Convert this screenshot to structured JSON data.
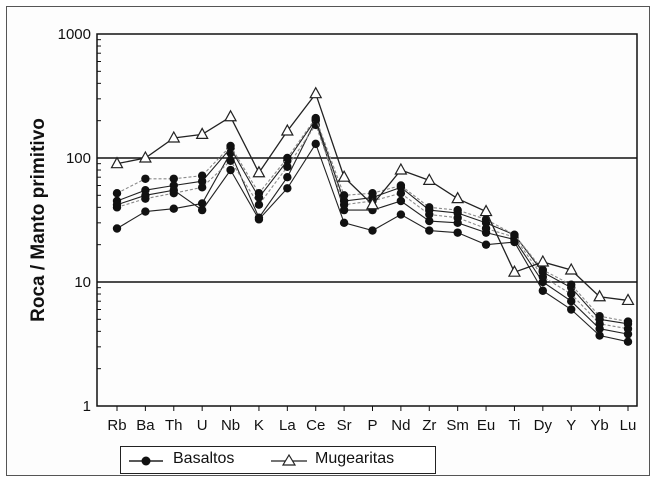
{
  "chart_data": {
    "type": "line",
    "title": "",
    "xlabel": "",
    "ylabel": "Roca / Manto primitivo",
    "yscale": "log",
    "ylim": [
      1,
      1000
    ],
    "yticks": [
      1,
      10,
      100,
      1000
    ],
    "ytick_labels": [
      "1",
      "10",
      "100",
      "1000"
    ],
    "gridlines_y": [
      10,
      100
    ],
    "categories": [
      "Rb",
      "Ba",
      "Th",
      "U",
      "Nb",
      "K",
      "La",
      "Ce",
      "Sr",
      "P",
      "Nd",
      "Zr",
      "Sm",
      "Eu",
      "Ti",
      "Dy",
      "Y",
      "Yb",
      "Lu"
    ],
    "legend_position": "bottom",
    "legend": [
      {
        "label": "Basaltos",
        "marker": "filled-circle"
      },
      {
        "label": "Mugearitas",
        "marker": "open-triangle"
      }
    ],
    "series": [
      {
        "name": "Basaltos",
        "marker": "circle",
        "values": [
          27,
          37,
          39,
          43,
          110,
          33,
          70,
          200,
          38,
          38,
          45,
          31,
          30,
          25,
          22,
          10,
          7,
          4.2,
          3.8
        ]
      },
      {
        "name": "Basaltos",
        "marker": "circle",
        "values": [
          40,
          47,
          52,
          58,
          95,
          42,
          85,
          185,
          42,
          45,
          52,
          35,
          33,
          27,
          23,
          11,
          8,
          4.6,
          4.2
        ]
      },
      {
        "name": "Basaltos",
        "marker": "circle",
        "values": [
          45,
          55,
          60,
          65,
          120,
          48,
          95,
          205,
          45,
          48,
          58,
          38,
          36,
          30,
          24,
          12,
          9,
          5.0,
          4.6
        ]
      },
      {
        "name": "Basaltos",
        "marker": "circle",
        "values": [
          52,
          68,
          68,
          72,
          125,
          52,
          100,
          210,
          50,
          52,
          60,
          40,
          38,
          32,
          24,
          12.5,
          9.5,
          5.3,
          4.8
        ]
      },
      {
        "name": "Basaltos",
        "marker": "circle",
        "values": [
          42,
          50,
          55,
          38,
          80,
          32,
          57,
          130,
          30,
          26,
          35,
          26,
          25,
          20,
          21,
          8.5,
          6,
          3.7,
          3.3
        ]
      },
      {
        "name": "Mugearitas",
        "marker": "triangle",
        "values": [
          90,
          100,
          145,
          155,
          215,
          76,
          165,
          330,
          70,
          42,
          80,
          66,
          47,
          37,
          12,
          14.5,
          12.5,
          7.6,
          7.1
        ]
      }
    ]
  },
  "colors": {
    "basaltos_line": "#222222",
    "basaltos_alt_line": "#8a8a8a",
    "mugearitas_line": "#222222",
    "grid": "#111111",
    "axis": "#111111"
  }
}
